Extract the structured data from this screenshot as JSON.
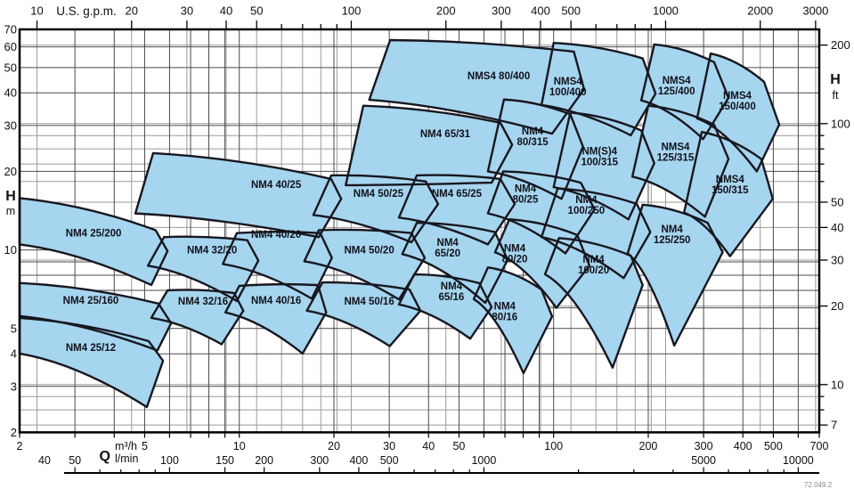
{
  "colors": {
    "region_fill": "#a6d5ef",
    "region_line": "#17171f",
    "grid_dark": "#4b4b50",
    "grid_gray": "#9b9b9b",
    "frame": "#000000",
    "text": "#0e0e14"
  },
  "chart_data": {
    "type": "area",
    "description": "Pump selection chart, flow Q vs head H, log-log grid, operating envelopes per pump model",
    "x_range_m3h": [
      2,
      700
    ],
    "y_range_m": [
      2,
      70
    ],
    "footnote": "72.049.2",
    "axes": {
      "top": {
        "unit_label": "U.S. g.p.m.",
        "range": [
          10,
          3000
        ],
        "labeled": [
          10,
          20,
          30,
          40,
          50,
          100,
          200,
          300,
          400,
          500,
          1000,
          2000,
          3000
        ]
      },
      "left": {
        "label": "H",
        "unit": "m",
        "range": [
          2,
          70
        ],
        "labeled": [
          70,
          60,
          50,
          40,
          30,
          20,
          10,
          5,
          4,
          3,
          2
        ]
      },
      "right": {
        "label": "H",
        "unit": "ft",
        "range": [
          7,
          200
        ],
        "labeled": [
          200,
          100,
          50,
          40,
          30,
          20,
          10,
          7
        ]
      },
      "bottom_m3h": {
        "symbol": "Q",
        "unit": "m³/h",
        "range": [
          2,
          700
        ],
        "labeled": [
          2,
          5,
          10,
          20,
          30,
          40,
          50,
          100,
          200,
          300,
          400,
          500,
          700
        ]
      },
      "bottom_lmin": {
        "unit": "l/min",
        "range": [
          30,
          10000
        ],
        "labeled": [
          40,
          50,
          100,
          150,
          200,
          300,
          400,
          500,
          1000,
          5000,
          10000
        ]
      }
    },
    "regions": [
      {
        "label_lines": [
          "NM4 25/12"
        ],
        "label_at": [
          3.37,
          4.23
        ],
        "points": [
          [
            2,
            4.01
          ],
          [
            2,
            5.49
          ],
          [
            5.15,
            4.47
          ],
          [
            5.72,
            3.76
          ],
          [
            5.08,
            2.5
          ]
        ]
      },
      {
        "label_lines": [
          "NM4 25/160"
        ],
        "label_at": [
          3.37,
          6.42
        ],
        "points": [
          [
            2,
            5.58
          ],
          [
            2,
            7.47
          ],
          [
            5.53,
            6.23
          ],
          [
            6.07,
            5.24
          ],
          [
            5.49,
            4.12
          ]
        ]
      },
      {
        "label_lines": [
          "NM4 32/16"
        ],
        "label_at": [
          7.67,
          6.37
        ],
        "points": [
          [
            5.25,
            5.49
          ],
          [
            5.91,
            7.0
          ],
          [
            9.63,
            6.83
          ],
          [
            10.3,
            5.85
          ],
          [
            8.79,
            4.35
          ]
        ]
      },
      {
        "label_lines": [
          "NM4 40/16"
        ],
        "label_at": [
          13.1,
          6.42
        ],
        "points": [
          [
            9.03,
            5.76
          ],
          [
            10.0,
            7.28
          ],
          [
            17.8,
            7.33
          ],
          [
            18.9,
            5.76
          ],
          [
            15.9,
            4.01
          ]
        ]
      },
      {
        "label_lines": [
          "NM4 50/16"
        ],
        "label_at": [
          25.9,
          6.37
        ],
        "points": [
          [
            16.4,
            5.85
          ],
          [
            18.4,
            7.51
          ],
          [
            34.8,
            7.05
          ],
          [
            37.7,
            5.85
          ],
          [
            30.1,
            4.28
          ]
        ]
      },
      {
        "label_lines": [
          "NM4",
          "65/16"
        ],
        "label_at": [
          47.3,
          6.95
        ],
        "points": [
          [
            32.2,
            6.18
          ],
          [
            36.0,
            8.06
          ],
          [
            58.0,
            7.46
          ],
          [
            63.5,
            6.04
          ],
          [
            54.3,
            4.57
          ]
        ]
      },
      {
        "label_lines": [
          "NM4",
          "80/16"
        ],
        "label_at": [
          69.9,
          5.81
        ],
        "points": [
          [
            55.7,
            6.48
          ],
          [
            61.8,
            8.57
          ],
          [
            91.5,
            7.05
          ],
          [
            98.9,
            5.56
          ],
          [
            80.2,
            3.37
          ]
        ]
      },
      {
        "label_lines": [
          "NM4 25/200"
        ],
        "label_at": [
          3.44,
          11.6
        ],
        "points": [
          [
            2,
            10.5
          ],
          [
            2,
            15.8
          ],
          [
            5.42,
            11.9
          ],
          [
            5.91,
            9.9
          ],
          [
            5.25,
            7.34
          ]
        ]
      },
      {
        "label_lines": [
          "NM4 32/20"
        ],
        "label_at": [
          8.19,
          10.0
        ],
        "points": [
          [
            5.12,
            8.7
          ],
          [
            5.76,
            11.2
          ],
          [
            10.6,
            10.9
          ],
          [
            11.5,
            9.1
          ],
          [
            9.82,
            6.37
          ]
        ]
      },
      {
        "label_lines": [
          "NM4 40/20"
        ],
        "label_at": [
          13.1,
          11.5
        ],
        "points": [
          [
            8.86,
            8.83
          ],
          [
            9.82,
            11.6
          ],
          [
            18.1,
            11.6
          ],
          [
            19.7,
            9.33
          ],
          [
            17.0,
            6.51
          ]
        ]
      },
      {
        "label_lines": [
          "NM4 50/20"
        ],
        "label_at": [
          25.9,
          10.0
        ],
        "points": [
          [
            16.1,
            9.05
          ],
          [
            17.9,
            11.9
          ],
          [
            35.3,
            11.6
          ],
          [
            38.9,
            9.33
          ],
          [
            32.2,
            6.46
          ]
        ]
      },
      {
        "label_lines": [
          "NM4",
          "65/20"
        ],
        "label_at": [
          46.0,
          10.2
        ],
        "points": [
          [
            33.0,
            9.64
          ],
          [
            36.7,
            12.7
          ],
          [
            65.1,
            11.7
          ],
          [
            71.4,
            9.16
          ],
          [
            60.6,
            6.27
          ]
        ]
      },
      {
        "label_lines": [
          "NM4",
          "80/20"
        ],
        "label_at": [
          75.2,
          9.7
        ],
        "points": [
          [
            65.1,
            9.79
          ],
          [
            72.3,
            13.1
          ],
          [
            119,
            11.4
          ],
          [
            130,
            8.7
          ],
          [
            102,
            6.0
          ]
        ]
      },
      {
        "label_lines": [
          "NM4",
          "100/20"
        ],
        "label_at": [
          134,
          8.8
        ],
        "points": [
          [
            93.9,
            8.07
          ],
          [
            104,
            11.1
          ],
          [
            176,
            9.5
          ],
          [
            192,
            7.34
          ],
          [
            154,
            3.54
          ]
        ]
      },
      {
        "label_lines": [
          "NM4 40/25"
        ],
        "label_at": [
          13.1,
          17.8
        ],
        "points": [
          [
            4.67,
            13.8
          ],
          [
            5.32,
            23.5
          ],
          [
            19.6,
            18.7
          ],
          [
            21.1,
            15.7
          ],
          [
            17.9,
            11.2
          ]
        ]
      },
      {
        "label_lines": [
          "NM4 50/25"
        ],
        "label_at": [
          27.7,
          16.5
        ],
        "points": [
          [
            17.2,
            13.6
          ],
          [
            19.6,
            19.3
          ],
          [
            39.2,
            18.3
          ],
          [
            42.9,
            15.0
          ],
          [
            35.3,
            10.7
          ]
        ]
      },
      {
        "label_lines": [
          "NM4 65/25"
        ],
        "label_at": [
          49.2,
          16.5
        ],
        "points": [
          [
            32.2,
            13.3
          ],
          [
            36.7,
            19.3
          ],
          [
            67.7,
            18.7
          ],
          [
            75.2,
            15.0
          ],
          [
            61.8,
            10.5
          ]
        ]
      },
      {
        "label_lines": [
          "NM4",
          "80/25"
        ],
        "label_at": [
          81.3,
          16.4
        ],
        "points": [
          [
            61.8,
            13.8
          ],
          [
            69.1,
            20.0
          ],
          [
            122,
            18.1
          ],
          [
            135,
            14.3
          ],
          [
            109,
            9.7
          ]
        ]
      },
      {
        "label_lines": [
          "NM4",
          "100/250"
        ],
        "label_at": [
          127,
          14.9
        ],
        "points": [
          [
            91.5,
            11.2
          ],
          [
            103,
            17.2
          ],
          [
            184,
            15.0
          ],
          [
            203,
            11.7
          ],
          [
            167,
            7.8
          ]
        ]
      },
      {
        "label_lines": [
          "NM4",
          "125/250"
        ],
        "label_at": [
          238,
          11.5
        ],
        "points": [
          [
            172,
            9.7
          ],
          [
            192,
            14.9
          ],
          [
            309,
            12.7
          ],
          [
            345,
            9.8
          ],
          [
            242,
            4.3
          ]
        ]
      },
      {
        "label_lines": [
          "NM4 65/31"
        ],
        "label_at": [
          45.2,
          27.9
        ],
        "points": [
          [
            21.8,
            17.7
          ],
          [
            24.8,
            35.7
          ],
          [
            67.7,
            30.7
          ],
          [
            73.8,
            25.3
          ],
          [
            63.5,
            18.1
          ]
        ]
      },
      {
        "label_lines": [
          "NM4",
          "80/315"
        ],
        "label_at": [
          85.7,
          27.3
        ],
        "points": [
          [
            61.8,
            20.0
          ],
          [
            69.5,
            37.7
          ],
          [
            113,
            33.1
          ],
          [
            124,
            24.9
          ],
          [
            106,
            15.7
          ]
        ]
      },
      {
        "label_lines": [
          "NM(S)4",
          "100/315"
        ],
        "label_at": [
          140,
          22.8
        ],
        "points": [
          [
            100,
            17.4
          ],
          [
            113,
            33.6
          ],
          [
            190,
            28.7
          ],
          [
            209,
            21.5
          ],
          [
            173,
            13.1
          ]
        ]
      },
      {
        "label_lines": [
          "NMS4",
          "125/315"
        ],
        "label_at": [
          244,
          23.8
        ],
        "points": [
          [
            178,
            19.1
          ],
          [
            200,
            35.7
          ],
          [
            324,
            30.2
          ],
          [
            360,
            22.3
          ],
          [
            303,
            13.4
          ]
        ]
      },
      {
        "label_lines": [
          "NMS4",
          "150/315"
        ],
        "label_at": [
          364,
          17.8
        ],
        "points": [
          [
            260,
            13.9
          ],
          [
            296,
            28.3
          ],
          [
            458,
            22.3
          ],
          [
            498,
            15.7
          ],
          [
            364,
            9.46
          ]
        ]
      },
      {
        "label_lines": [
          "NMS4 80/400"
        ],
        "label_at": [
          66.9,
          46.6
        ],
        "points": [
          [
            25.9,
            37.6
          ],
          [
            30.2,
            63.7
          ],
          [
            116,
            57.5
          ],
          [
            125,
            41.3
          ],
          [
            98.9,
            27.9
          ]
        ]
      },
      {
        "label_lines": [
          "NMS4",
          "100/400"
        ],
        "label_at": [
          111,
          42.3
        ],
        "points": [
          [
            91.5,
            35.9
          ],
          [
            100,
            62.1
          ],
          [
            192,
            54.2
          ],
          [
            211,
            39.7
          ],
          [
            176,
            27.5
          ]
        ]
      },
      {
        "label_lines": [
          "NMS4",
          "125/400"
        ],
        "label_at": [
          246,
          42.6
        ],
        "points": [
          [
            190,
            37.4
          ],
          [
            209,
            61.3
          ],
          [
            324,
            52.4
          ],
          [
            360,
            38.3
          ],
          [
            299,
            26.6
          ]
        ]
      },
      {
        "label_lines": [
          "NMS4",
          "150/400"
        ],
        "label_at": [
          384,
          37.4
        ],
        "points": [
          [
            286,
            31.9
          ],
          [
            316,
            56.6
          ],
          [
            467,
            44.1
          ],
          [
            522,
            30.2
          ],
          [
            443,
            20.0
          ]
        ]
      }
    ]
  }
}
